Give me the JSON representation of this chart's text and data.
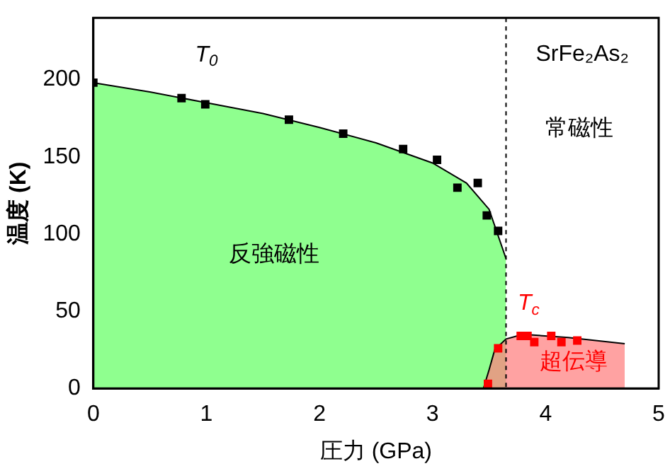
{
  "chart_data": {
    "type": "scatter",
    "xlabel": "圧力 (GPa)",
    "ylabel": "温度 (K)",
    "xlim": [
      0,
      5
    ],
    "xticks": [
      0,
      1,
      2,
      3,
      4,
      5
    ],
    "ylim": [
      0,
      240
    ],
    "yticks": [
      0,
      50,
      100,
      150,
      200
    ],
    "grid": false,
    "legend": false,
    "series": [
      {
        "type": "area",
        "color": "#66ff66",
        "x": [
          0,
          0.5,
          1,
          1.5,
          2,
          2.5,
          3,
          3.3,
          3.5,
          3.65
        ],
        "values": [
          198,
          192,
          185,
          178,
          169,
          159,
          146,
          133,
          116,
          84
        ]
      },
      {
        "type": "area",
        "color": "#ff8080",
        "x": [
          3.45,
          3.5,
          3.55,
          3.65,
          3.8,
          4.2,
          4.7
        ],
        "values": [
          0,
          12,
          25,
          32,
          35,
          33,
          29
        ]
      },
      {
        "marker": "square",
        "color": "#000000",
        "x": [
          0,
          0.78,
          0.99,
          1.73,
          2.21,
          2.74,
          3.04,
          3.22,
          3.4,
          3.48,
          3.58
        ],
        "values": [
          198,
          188,
          184,
          174,
          165,
          155,
          148,
          130,
          133,
          112,
          102
        ]
      },
      {
        "marker": "square",
        "color": "#ff0000",
        "x": [
          3.49,
          3.58,
          3.78,
          3.84,
          3.9,
          4.05,
          4.14,
          4.28
        ],
        "values": [
          3,
          26,
          34,
          34,
          30,
          34,
          30,
          31
        ]
      }
    ],
    "ref_lines": [
      {
        "axis": "x",
        "value": 3.65,
        "line_style": "dashed",
        "color": "#000000"
      }
    ],
    "annotations": [
      "T$_{0}$",
      "T$_{c}$",
      "SrFe₂As₂",
      "常磁性",
      "反強磁性",
      "超伝導"
    ]
  }
}
